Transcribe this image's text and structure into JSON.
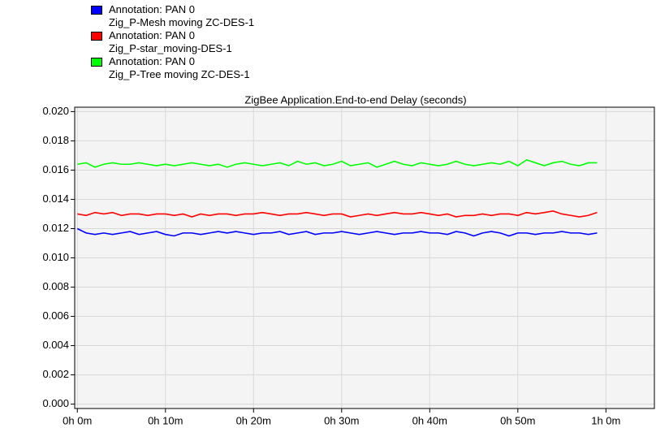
{
  "chart_data": {
    "type": "line",
    "title": "ZigBee Application.End-to-end Delay (seconds)",
    "x": [
      0,
      1,
      2,
      3,
      4,
      5,
      6,
      7,
      8,
      9,
      10,
      11,
      12,
      13,
      14,
      15,
      16,
      17,
      18,
      19,
      20,
      21,
      22,
      23,
      24,
      25,
      26,
      27,
      28,
      29,
      30,
      31,
      32,
      33,
      34,
      35,
      36,
      37,
      38,
      39,
      40,
      41,
      42,
      43,
      44,
      45,
      46,
      47,
      48,
      49,
      50,
      51,
      52,
      53,
      54,
      55,
      56,
      57,
      58,
      59
    ],
    "xlim": [
      -0.3,
      65.5
    ],
    "xticks": [
      {
        "value": 0,
        "label": "0h 0m"
      },
      {
        "value": 10,
        "label": "0h 10m"
      },
      {
        "value": 20,
        "label": "0h 20m"
      },
      {
        "value": 30,
        "label": "0h 30m"
      },
      {
        "value": 40,
        "label": "0h 40m"
      },
      {
        "value": 50,
        "label": "0h 50m"
      },
      {
        "value": 60,
        "label": "1h 0m"
      }
    ],
    "ylim": [
      -0.0003,
      0.0203
    ],
    "yticks": [
      {
        "value": 0,
        "label": "0.000"
      },
      {
        "value": 0.002,
        "label": "0.002"
      },
      {
        "value": 0.004,
        "label": "0.004"
      },
      {
        "value": 0.006,
        "label": "0.006"
      },
      {
        "value": 0.008,
        "label": "0.008"
      },
      {
        "value": 0.01,
        "label": "0.010"
      },
      {
        "value": 0.012,
        "label": "0.012"
      },
      {
        "value": 0.014,
        "label": "0.014"
      },
      {
        "value": 0.016,
        "label": "0.016"
      },
      {
        "value": 0.018,
        "label": "0.018"
      },
      {
        "value": 0.02,
        "label": "0.020"
      }
    ],
    "grid": true,
    "legend": "top-left",
    "series": [
      {
        "name": "Annotation: PAN 0\nZig_P-Mesh moving ZC-DES-1",
        "color": "#0000ff",
        "values": [
          0.012,
          0.0117,
          0.0116,
          0.0117,
          0.0116,
          0.0117,
          0.0118,
          0.0116,
          0.0117,
          0.0118,
          0.0116,
          0.0115,
          0.0117,
          0.0117,
          0.0116,
          0.0117,
          0.0118,
          0.0117,
          0.0118,
          0.0117,
          0.0116,
          0.0117,
          0.0117,
          0.0118,
          0.0116,
          0.0117,
          0.0118,
          0.0116,
          0.0117,
          0.0117,
          0.0118,
          0.0117,
          0.0116,
          0.0117,
          0.0118,
          0.0117,
          0.0116,
          0.0117,
          0.0117,
          0.0118,
          0.0117,
          0.0117,
          0.0116,
          0.0118,
          0.0117,
          0.0115,
          0.0117,
          0.0118,
          0.0117,
          0.0115,
          0.0117,
          0.0117,
          0.0116,
          0.0117,
          0.0117,
          0.0118,
          0.0117,
          0.0117,
          0.0116,
          0.0117
        ]
      },
      {
        "name": "Annotation: PAN 0\nZig_P-star_moving-DES-1",
        "color": "#ff0000",
        "values": [
          0.013,
          0.0129,
          0.0131,
          0.013,
          0.0131,
          0.0129,
          0.013,
          0.013,
          0.0129,
          0.013,
          0.013,
          0.0129,
          0.013,
          0.0128,
          0.013,
          0.0129,
          0.013,
          0.013,
          0.0129,
          0.013,
          0.013,
          0.0131,
          0.013,
          0.0129,
          0.013,
          0.013,
          0.0131,
          0.013,
          0.0129,
          0.013,
          0.013,
          0.0128,
          0.0129,
          0.013,
          0.0129,
          0.013,
          0.0131,
          0.013,
          0.013,
          0.0131,
          0.013,
          0.0129,
          0.013,
          0.0128,
          0.0129,
          0.0129,
          0.013,
          0.0129,
          0.013,
          0.013,
          0.0129,
          0.0131,
          0.013,
          0.0131,
          0.0132,
          0.013,
          0.0129,
          0.0128,
          0.0129,
          0.0131
        ]
      },
      {
        "name": "Annotation: PAN 0\nZig_P-Tree moving ZC-DES-1",
        "color": "#00ff00",
        "values": [
          0.0164,
          0.0165,
          0.0162,
          0.0164,
          0.0165,
          0.0164,
          0.0164,
          0.0165,
          0.0164,
          0.0163,
          0.0164,
          0.0163,
          0.0164,
          0.0165,
          0.0164,
          0.0163,
          0.0164,
          0.0162,
          0.0164,
          0.0165,
          0.0164,
          0.0163,
          0.0164,
          0.0165,
          0.0163,
          0.0166,
          0.0164,
          0.0165,
          0.0163,
          0.0164,
          0.0166,
          0.0163,
          0.0164,
          0.0165,
          0.0162,
          0.0164,
          0.0166,
          0.0164,
          0.0163,
          0.0165,
          0.0164,
          0.0163,
          0.0164,
          0.0166,
          0.0164,
          0.0163,
          0.0164,
          0.0165,
          0.0164,
          0.0166,
          0.0163,
          0.0167,
          0.0165,
          0.0163,
          0.0165,
          0.0166,
          0.0164,
          0.0163,
          0.0165,
          0.0165
        ]
      }
    ]
  }
}
